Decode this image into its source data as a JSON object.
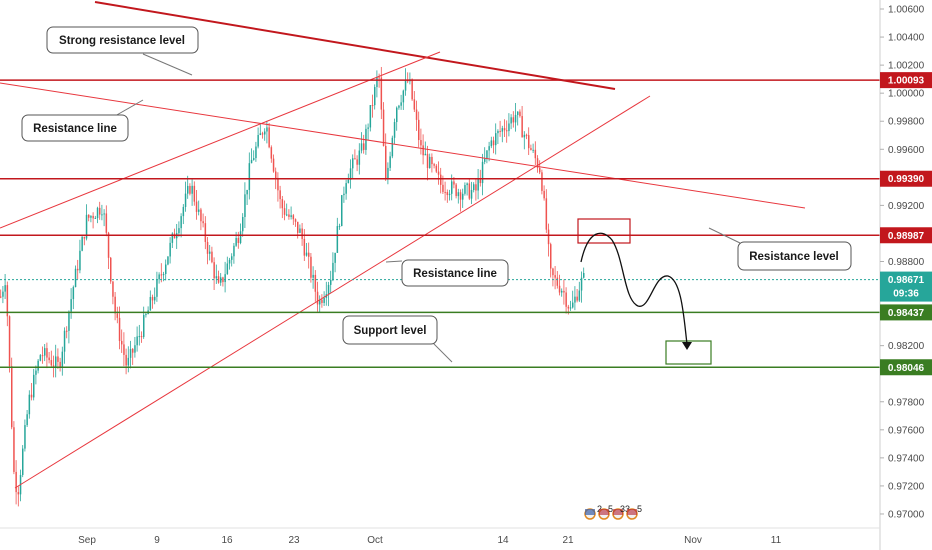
{
  "chart_data": {
    "type": "candlestick",
    "y_ticks": [
      "1.00600",
      "1.00400",
      "1.00200",
      "1.00000",
      "0.99800",
      "0.99600",
      "0.99200",
      "0.98800",
      "0.98200",
      "0.97800",
      "0.97600",
      "0.97400",
      "0.97200",
      "0.97000"
    ],
    "ylim": [
      0.969,
      1.0065
    ],
    "x_ticks": [
      "Sep",
      "9",
      "16",
      "23",
      "Oct",
      "14",
      "21",
      "Nov",
      "11"
    ],
    "levels": [
      {
        "name": "Strong resistance level",
        "value": 1.00093,
        "label": "1.00093",
        "color": "#c2171d"
      },
      {
        "name": "Resistance level",
        "value": 0.9939,
        "label": "0.99390",
        "color": "#c2171d"
      },
      {
        "name": "Resistance level",
        "value": 0.98987,
        "label": "0.98987",
        "color": "#c2171d"
      },
      {
        "name": "Support level",
        "value": 0.98437,
        "label": "0.98437",
        "color": "#3a7d22"
      },
      {
        "name": "Support level",
        "value": 0.98046,
        "label": "0.98046",
        "color": "#3a7d22"
      }
    ],
    "current_price": {
      "label": "0.98671",
      "countdown": "09:36",
      "value": 0.98671,
      "color": "#26a69a"
    },
    "annotations": [
      "Strong resistance level",
      "Resistance line",
      "Resistance line",
      "Resistance level",
      "Support level"
    ],
    "events": {
      "counts": [
        "2",
        "5",
        "33",
        "5"
      ]
    },
    "colors": {
      "up": "#26a69a",
      "down": "#ef5350",
      "resistance": "#c2171d",
      "support": "#3a7d22",
      "trendline": "#e8373e"
    },
    "grid": false
  }
}
